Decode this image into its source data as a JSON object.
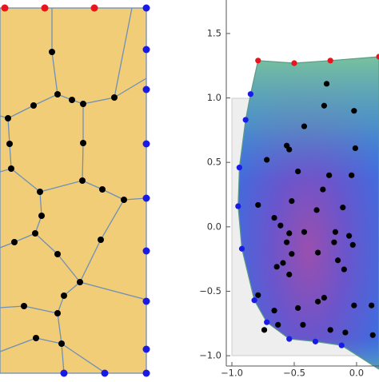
{
  "chart_data": {
    "type": "scatter",
    "xlim": [
      -1.045,
      0.18
    ],
    "ylim": [
      -1.08,
      1.76
    ],
    "xticks": [
      {
        "value": -1,
        "label": "−1.0"
      },
      {
        "value": -0.5,
        "label": "−0.5"
      },
      {
        "value": 0,
        "label": "0.0"
      }
    ],
    "yticks": [
      {
        "value": -1,
        "label": "−1.0"
      },
      {
        "value": -0.5,
        "label": "−0.5"
      },
      {
        "value": 0,
        "label": "0.0"
      },
      0.5,
      {
        "value": 1,
        "label": "1.0"
      },
      1.5
    ],
    "series": [
      {
        "color": "#000000",
        "x": [
          -0.24,
          -0.26,
          -0.02,
          -0.42,
          -0.56,
          -0.54,
          -0.01,
          -0.72,
          -0.47,
          -0.27,
          -0.22,
          -0.04,
          -0.79,
          -0.52,
          -0.11,
          -0.32,
          -0.66,
          -0.61,
          -0.17,
          -0.06,
          -0.42,
          -0.54,
          -0.56,
          -0.18,
          -0.03,
          -0.52,
          -0.31,
          -0.59,
          -0.64,
          -0.15,
          -0.54,
          -0.1,
          -0.79,
          -0.26,
          -0.31,
          -0.47,
          -0.02,
          0.12,
          -0.66,
          -0.43,
          -0.63,
          -0.21,
          -0.74,
          -0.09,
          0.13
        ],
        "values": [
          1.11,
          0.94,
          0.9,
          0.78,
          0.63,
          0.6,
          0.61,
          0.52,
          0.43,
          0.29,
          0.4,
          0.4,
          0.17,
          0.2,
          0.15,
          0.13,
          0.07,
          0.01,
          -0.04,
          -0.07,
          -0.04,
          -0.05,
          -0.12,
          -0.12,
          -0.14,
          -0.21,
          -0.2,
          -0.28,
          -0.31,
          -0.26,
          -0.37,
          -0.33,
          -0.53,
          -0.55,
          -0.58,
          -0.63,
          -0.61,
          -0.61,
          -0.65,
          -0.76,
          -0.76,
          -0.8,
          -0.8,
          -0.82,
          -0.84
        ]
      },
      {
        "color": "#e8141e",
        "x": [
          -0.79,
          -0.5,
          -0.21,
          0.18
        ],
        "values": [
          1.29,
          1.27,
          1.29,
          1.32
        ]
      },
      {
        "color": "#1a1ae6",
        "x": [
          -0.85,
          -0.89,
          -0.94,
          -0.95,
          -0.92,
          -0.82,
          -0.72,
          -0.54,
          -0.33,
          -0.12
        ],
        "values": [
          1.03,
          0.83,
          0.46,
          0.16,
          -0.17,
          -0.57,
          -0.74,
          -0.87,
          -0.89,
          -0.92
        ]
      }
    ]
  }
}
